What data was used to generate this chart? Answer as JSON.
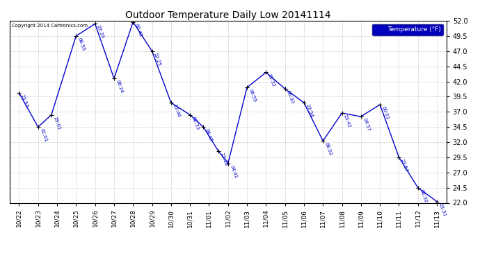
{
  "title": "Outdoor Temperature Daily Low 20141114",
  "copyright": "Copyright 2014 Cartronics.com",
  "legend_label": "Temperature (°F)",
  "x_labels": [
    "10/22",
    "10/23",
    "10/24",
    "10/25",
    "10/26",
    "10/27",
    "10/28",
    "10/29",
    "10/30",
    "10/31",
    "11/01",
    "11/02",
    "11/03",
    "11/04",
    "11/05",
    "11/06",
    "11/07",
    "11/08",
    "11/09",
    "11/10",
    "11/11",
    "11/12",
    "11/13"
  ],
  "ylim": [
    22.0,
    52.0
  ],
  "yticks": [
    22.0,
    24.5,
    27.0,
    29.5,
    32.0,
    34.5,
    37.0,
    39.5,
    42.0,
    44.5,
    47.0,
    49.5,
    52.0
  ],
  "points": [
    {
      "xi": 0.0,
      "y": 40.1,
      "label": "23:57"
    },
    {
      "xi": 1.0,
      "y": 34.5,
      "label": "01:01"
    },
    {
      "xi": 1.7,
      "y": 36.5,
      "label": "19:01"
    },
    {
      "xi": 3.0,
      "y": 49.5,
      "label": "08:55"
    },
    {
      "xi": 4.0,
      "y": 51.5,
      "label": "23:39"
    },
    {
      "xi": 5.0,
      "y": 42.5,
      "label": "06:24"
    },
    {
      "xi": 6.0,
      "y": 51.8,
      "label": "00:42"
    },
    {
      "xi": 7.0,
      "y": 47.0,
      "label": "22:25"
    },
    {
      "xi": 8.0,
      "y": 38.5,
      "label": "23:46"
    },
    {
      "xi": 9.0,
      "y": 36.5,
      "label": "02:33"
    },
    {
      "xi": 9.7,
      "y": 34.5,
      "label": "04:47"
    },
    {
      "xi": 10.5,
      "y": 30.5,
      "label": "23:28"
    },
    {
      "xi": 11.0,
      "y": 28.5,
      "label": "04:41"
    },
    {
      "xi": 12.0,
      "y": 41.0,
      "label": "06:55"
    },
    {
      "xi": 13.0,
      "y": 43.5,
      "label": "23:32"
    },
    {
      "xi": 14.0,
      "y": 40.8,
      "label": "06:30"
    },
    {
      "xi": 15.0,
      "y": 38.5,
      "label": "23:54"
    },
    {
      "xi": 16.0,
      "y": 32.2,
      "label": "08:02"
    },
    {
      "xi": 17.0,
      "y": 36.8,
      "label": "23:42"
    },
    {
      "xi": 18.0,
      "y": 36.2,
      "label": "04:57"
    },
    {
      "xi": 19.0,
      "y": 38.2,
      "label": "00:01"
    },
    {
      "xi": 20.0,
      "y": 29.5,
      "label": "23:57"
    },
    {
      "xi": 21.0,
      "y": 24.5,
      "label": "06:32"
    },
    {
      "xi": 22.0,
      "y": 22.2,
      "label": "23:31"
    }
  ],
  "line_color": "#0000cc",
  "marker_color": "#000000",
  "bg_color": "#ffffff",
  "grid_color": "#b0b0b0",
  "title_color": "#000000",
  "legend_bg": "#0000bb",
  "legend_text_color": "#ffffff"
}
